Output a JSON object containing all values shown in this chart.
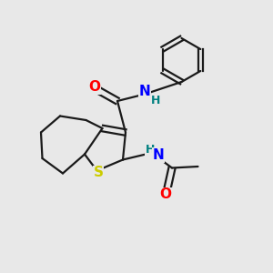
{
  "bg_color": "#e8e8e8",
  "line_color": "#1a1a1a",
  "bond_width": 1.6,
  "atom_colors": {
    "O": "#ff0000",
    "N": "#0000ff",
    "S": "#cccc00",
    "H": "#008080"
  }
}
